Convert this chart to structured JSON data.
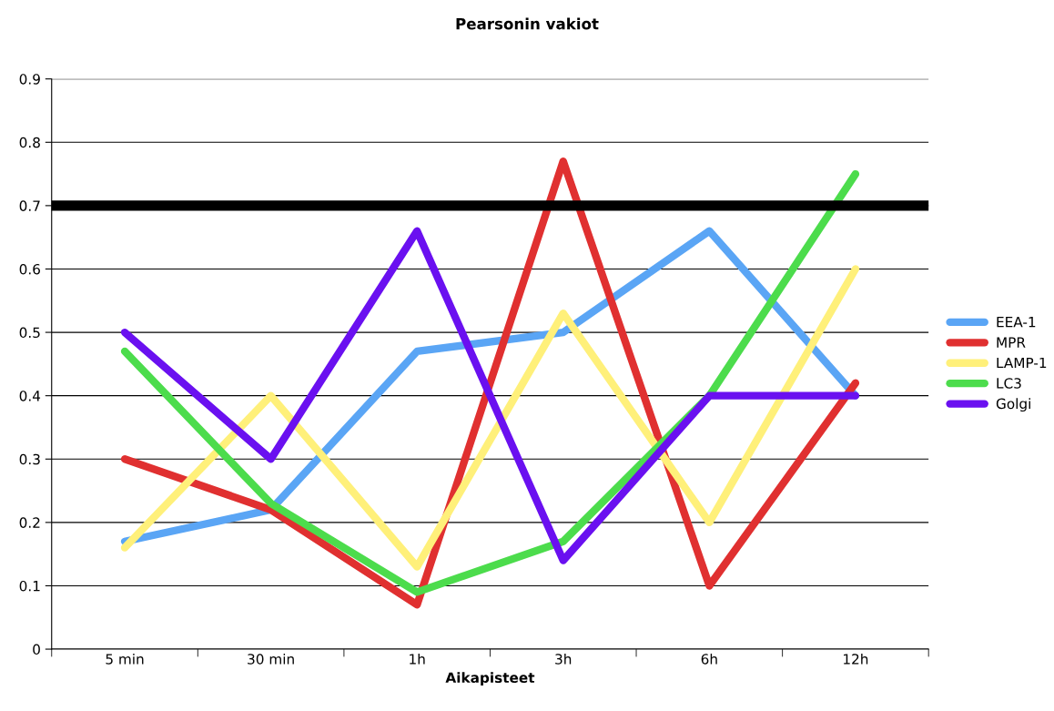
{
  "chart_data": {
    "type": "line",
    "title": "Pearsonin vakiot",
    "xlabel": "Aikapisteet",
    "categories": [
      "5 min",
      "30 min",
      "1h",
      "3h",
      "6h",
      "12h"
    ],
    "series": [
      {
        "name": "EEA-1",
        "color": "#5aa5f5",
        "values": [
          0.17,
          0.22,
          0.47,
          0.5,
          0.66,
          0.4
        ]
      },
      {
        "name": "MPR",
        "color": "#e03030",
        "values": [
          0.3,
          0.22,
          0.07,
          0.77,
          0.1,
          0.42
        ]
      },
      {
        "name": "LAMP-1",
        "color": "#fff07a",
        "values": [
          0.16,
          0.4,
          0.13,
          0.53,
          0.2,
          0.6
        ]
      },
      {
        "name": "LC3",
        "color": "#4cdc4c",
        "values": [
          0.47,
          0.23,
          0.09,
          0.17,
          0.4,
          0.75
        ]
      },
      {
        "name": "Golgi",
        "color": "#6a10f0",
        "values": [
          0.5,
          0.3,
          0.66,
          0.14,
          0.4,
          0.4
        ]
      }
    ],
    "ylim": [
      0,
      0.9
    ],
    "yticks": [
      0,
      0.1,
      0.2,
      0.3,
      0.4,
      0.5,
      0.6,
      0.7,
      0.8,
      0.9
    ],
    "ref_lines": [
      {
        "axis": "y",
        "value": 0.7,
        "color": "#000000"
      }
    ],
    "grid": "y",
    "legend": "right",
    "marker": "none",
    "line_style": "solid"
  }
}
